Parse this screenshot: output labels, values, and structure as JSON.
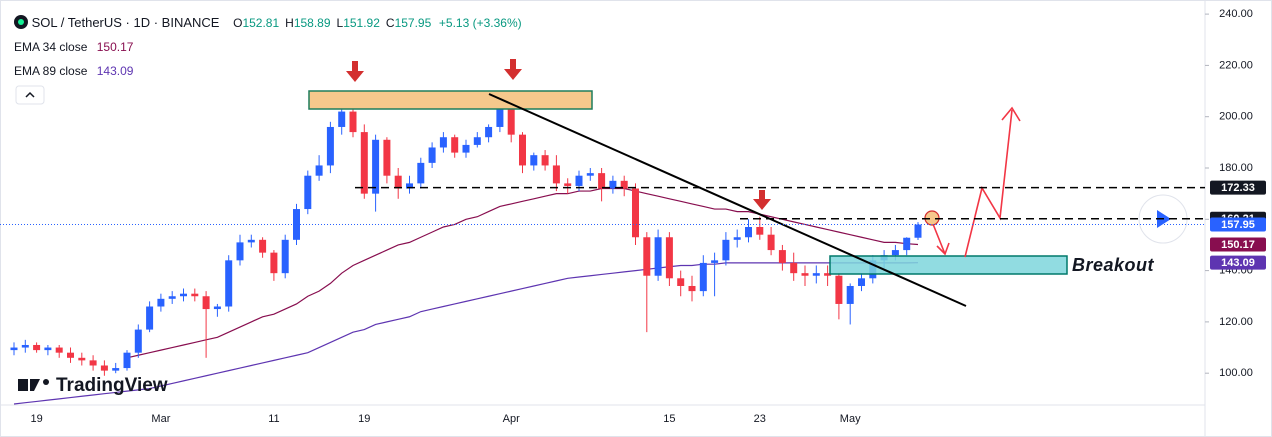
{
  "chart_data": {
    "type": "candlestick",
    "title": "SOL / TetherUS · 1D · BINANCE",
    "ohlc_legend": [
      {
        "key": "O",
        "value": "152.81"
      },
      {
        "key": "H",
        "value": "158.89"
      },
      {
        "key": "L",
        "value": "151.92"
      },
      {
        "key": "C",
        "value": "157.95"
      }
    ],
    "change": "+5.13 (+3.36%)",
    "categories": [
      null,
      null,
      "19",
      null,
      null,
      null,
      null,
      null,
      null,
      null,
      null,
      null,
      null,
      "Mar",
      null,
      null,
      null,
      null,
      null,
      null,
      null,
      null,
      null,
      "11",
      null,
      null,
      null,
      null,
      null,
      null,
      null,
      "19",
      null,
      null,
      null,
      null,
      null,
      null,
      null,
      null,
      null,
      null,
      null,
      null,
      "Apr",
      null,
      null,
      null,
      null,
      null,
      null,
      null,
      null,
      null,
      null,
      null,
      null,
      null,
      "15",
      null,
      null,
      null,
      null,
      null,
      null,
      null,
      "23",
      null,
      null,
      null,
      null,
      null,
      null,
      null,
      "May",
      null,
      null,
      null,
      null,
      null,
      null
    ],
    "open": [
      109,
      110,
      111,
      109,
      110,
      108,
      106,
      105,
      103,
      101,
      102,
      108,
      117,
      126,
      129,
      130,
      131,
      130,
      125,
      126,
      144,
      151,
      152,
      147,
      139,
      152,
      164,
      177,
      181,
      196,
      202,
      194,
      170,
      191,
      177,
      172,
      174,
      182,
      188,
      192,
      186,
      189,
      192,
      196,
      203,
      193,
      181,
      185,
      181,
      174,
      173,
      177,
      178,
      172,
      175,
      172,
      153,
      138,
      153,
      137,
      134,
      132,
      143,
      144,
      152,
      153,
      157,
      154,
      148,
      143,
      139,
      138,
      139,
      138,
      127,
      134,
      137,
      144,
      146,
      148,
      152.81
    ],
    "high": [
      112,
      113,
      112,
      111,
      111,
      110,
      108,
      107,
      105,
      104,
      109,
      119,
      128,
      131,
      132,
      133,
      133,
      132,
      127,
      146,
      154,
      154,
      153,
      148,
      154,
      166,
      179,
      185,
      198,
      205,
      209,
      197,
      193,
      192,
      180,
      177,
      184,
      190,
      194,
      193,
      191,
      194,
      197,
      208,
      205,
      194,
      186,
      187,
      185,
      176,
      179,
      180,
      180,
      177,
      177,
      174,
      155,
      156,
      155,
      140,
      138,
      146,
      147,
      155,
      156,
      160,
      161,
      157,
      150,
      147,
      142,
      142,
      142,
      139,
      135,
      139,
      146,
      148,
      150,
      153,
      158.89
    ],
    "low": [
      107,
      108,
      108,
      107,
      106,
      104,
      103,
      101,
      99,
      100,
      101,
      106,
      116,
      124,
      127,
      128,
      128,
      106,
      122,
      124,
      142,
      149,
      145,
      136,
      137,
      150,
      162,
      175,
      178,
      193,
      192,
      168,
      163,
      174,
      168,
      170,
      172,
      180,
      186,
      184,
      184,
      188,
      190,
      194,
      190,
      178,
      179,
      179,
      171,
      170,
      171,
      175,
      167,
      170,
      169,
      150,
      116,
      136,
      134,
      130,
      128,
      130,
      130,
      142,
      149,
      151,
      152,
      146,
      140,
      136,
      134,
      135,
      134,
      121,
      119,
      132,
      135,
      141,
      144,
      146,
      151.92
    ],
    "close": [
      110,
      111,
      109,
      110,
      108,
      106,
      105,
      103,
      101,
      102,
      108,
      117,
      126,
      129,
      130,
      131,
      130,
      125,
      126,
      144,
      151,
      152,
      147,
      139,
      152,
      164,
      177,
      181,
      196,
      202,
      194,
      170,
      191,
      177,
      172,
      174,
      182,
      188,
      192,
      186,
      189,
      192,
      196,
      203,
      193,
      181,
      185,
      181,
      174,
      173,
      177,
      178,
      172,
      175,
      172,
      153,
      138,
      153,
      137,
      134,
      132,
      143,
      144,
      152,
      153,
      157,
      154,
      148,
      143,
      139,
      138,
      139,
      138,
      127,
      134,
      137,
      144,
      146,
      148,
      152.81,
      157.95
    ],
    "up_color": "#2962ff",
    "down_color": "#f23645",
    "series": [
      {
        "name": "EMA 34 close",
        "color": "#880e4f",
        "values": [
          null,
          null,
          null,
          null,
          null,
          null,
          null,
          null,
          null,
          null,
          106,
          107,
          108,
          109,
          110,
          111,
          112,
          113,
          114,
          116,
          118,
          120,
          122,
          123,
          125,
          127,
          130,
          132,
          135,
          139,
          142,
          144,
          146,
          148,
          150,
          151,
          153,
          155,
          157,
          158,
          160,
          161,
          163,
          165,
          166,
          167,
          168,
          169,
          170,
          170,
          171,
          171,
          172,
          172,
          172,
          171,
          170,
          169,
          168,
          167,
          166,
          165,
          164,
          164,
          163,
          163,
          162,
          161,
          160,
          159,
          158,
          157,
          156,
          155,
          154,
          153,
          152,
          151,
          151,
          150.5,
          150.17
        ]
      },
      {
        "name": "EMA 89 close",
        "color": "#5e35b1",
        "values": [
          88,
          88.5,
          89,
          89.5,
          90,
          90.5,
          91,
          91.5,
          92,
          92.5,
          93,
          93.5,
          94,
          95,
          96,
          97,
          98,
          99,
          100,
          101,
          102,
          103,
          104,
          105,
          106,
          107,
          108,
          110,
          112,
          114,
          116,
          117,
          119,
          120,
          121,
          122,
          124,
          125,
          126,
          127,
          128,
          129,
          130,
          131,
          132,
          133,
          134,
          135,
          136,
          137,
          137.5,
          138,
          138.5,
          139,
          139.5,
          140,
          140.5,
          141,
          141.5,
          142,
          142,
          142.5,
          142.5,
          143,
          143,
          143,
          143,
          143,
          143,
          143,
          143,
          143,
          143,
          143,
          143,
          143,
          143,
          143,
          143,
          143,
          143.09
        ]
      }
    ],
    "levels": [
      172.33,
      160.21
    ],
    "ylim": [
      87.6,
      245.5
    ],
    "yticks": [
      {
        "value": 100,
        "label": "100.00"
      },
      {
        "value": 120,
        "label": "120.00"
      },
      {
        "value": 140,
        "label": "140.00"
      },
      {
        "value": 160,
        "label": "160.00"
      },
      {
        "value": 180,
        "label": "180.00"
      },
      {
        "value": 200,
        "label": "200.00"
      },
      {
        "value": 220,
        "label": "220.00"
      },
      {
        "value": 240,
        "label": "240.00"
      }
    ],
    "annotation": "Breakout",
    "watermark": "TradingView"
  }
}
